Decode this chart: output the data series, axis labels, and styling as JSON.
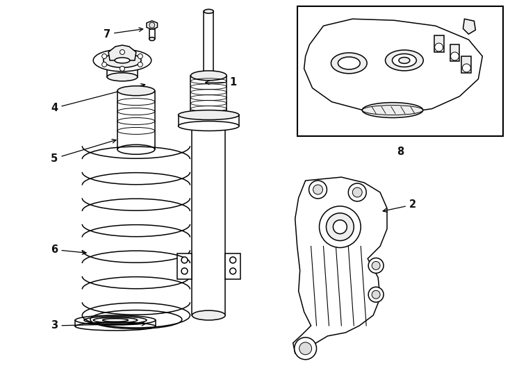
{
  "bg_color": "#ffffff",
  "line_color": "#000000",
  "figsize": [
    7.34,
    5.4
  ],
  "dpi": 100,
  "lw": 1.1
}
